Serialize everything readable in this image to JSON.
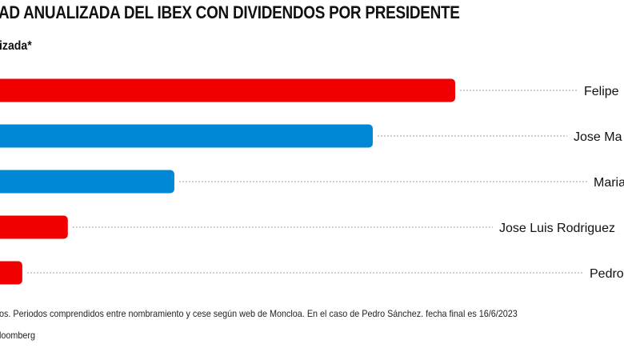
{
  "chart_data": {
    "type": "bar",
    "orientation": "horizontal",
    "title": "AD ANUALIZADA DEL IBEX CON DIVIDENDOS POR PRESIDENTE",
    "subtitle": "izada*",
    "categories": [
      "Felipe",
      "Jose Ma",
      "Maria",
      "Jose Luis Rodriguez",
      "Pedro"
    ],
    "values": [
      100,
      81.9,
      38.3,
      14.9,
      4.9
    ],
    "value_units": "relative (max = 100); axis not shown",
    "colors": [
      "#f00000",
      "#0088d6",
      "#0088d6",
      "#f00000",
      "#f00000"
    ],
    "grid": false,
    "note": "os. Periodos comprendidos entre nombramiento y cese según web de Moncloa. En el caso de Pedro Sánchez. fecha final es 16/6/2023",
    "source": "loomberg"
  }
}
